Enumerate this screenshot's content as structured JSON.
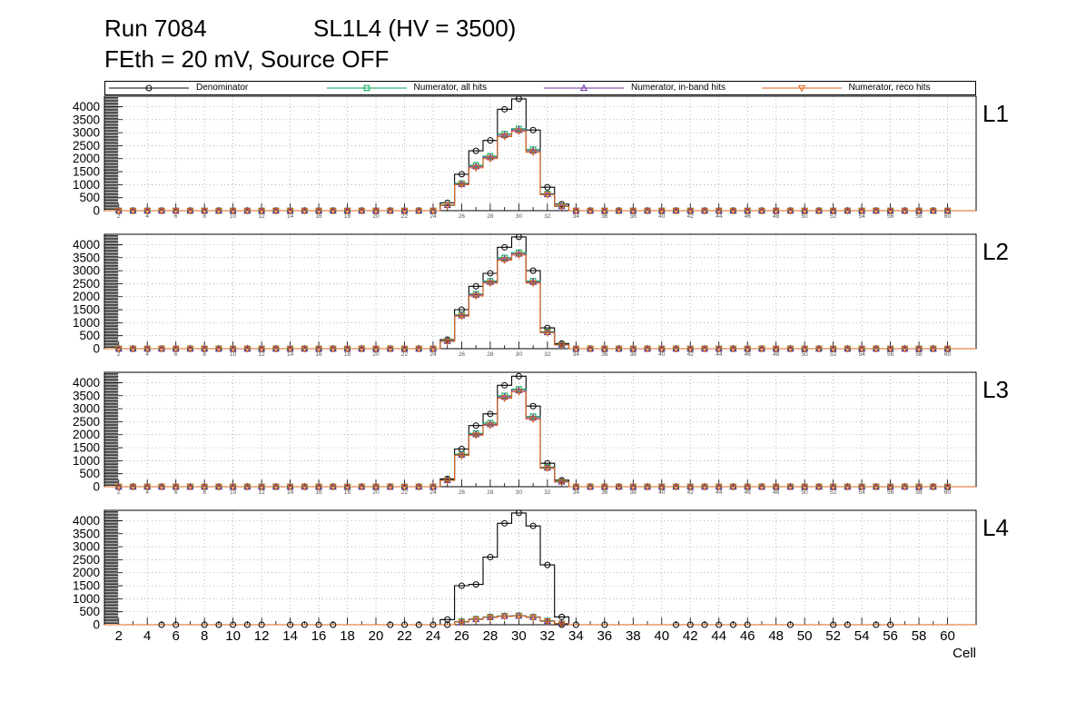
{
  "header": {
    "run": "Run 7084",
    "config": "SL1L4 (HV = 3500)",
    "subtitle": "FEth = 20 mV, Source OFF"
  },
  "legend": {
    "entries": [
      {
        "label": "Denominator",
        "color": "#000000",
        "marker": "circle"
      },
      {
        "label": "Numerator, all hits",
        "color": "#00a651",
        "marker": "square"
      },
      {
        "label": "Numerator, in-band hits",
        "color": "#7030a0",
        "marker": "triangle-up"
      },
      {
        "label": "Numerator, reco hits",
        "color": "#e0661a",
        "marker": "triangle-down"
      }
    ]
  },
  "axes": {
    "x_label": "Cell",
    "x_min": 1,
    "x_max": 62,
    "x_tick_start": 2,
    "x_tick_end": 60,
    "x_tick_step": 2,
    "y_min": 0,
    "y_max": 4400,
    "y_tick_step": 500,
    "y_tick_label_max": 4000,
    "grid": true
  },
  "chart_data": {
    "type": "line",
    "description": "Step histograms (counts vs cell) for layers L1-L4; all cells outside peak_cells have value 0.",
    "xlabel": "Cell",
    "ylabel": "",
    "ylim": [
      0,
      4400
    ],
    "peak_cells": [
      24,
      25,
      26,
      27,
      28,
      29,
      30,
      31,
      32,
      33,
      34
    ],
    "series_names": [
      "Denominator",
      "Numerator, all hits",
      "Numerator, in-band hits",
      "Numerator, reco hits"
    ],
    "panels": [
      {
        "label": "L1",
        "values": [
          [
            0,
            300,
            1400,
            2300,
            2700,
            3900,
            4300,
            3100,
            900,
            250,
            0
          ],
          [
            0,
            220,
            1050,
            1750,
            2100,
            2950,
            3150,
            2350,
            650,
            180,
            0
          ],
          [
            0,
            210,
            1020,
            1700,
            2050,
            2900,
            3100,
            2300,
            630,
            170,
            0
          ],
          [
            0,
            200,
            1000,
            1650,
            2000,
            2850,
            3050,
            2250,
            610,
            160,
            0
          ]
        ]
      },
      {
        "label": "L2",
        "values": [
          [
            0,
            350,
            1500,
            2400,
            2900,
            3900,
            4300,
            3000,
            800,
            200,
            0
          ],
          [
            0,
            300,
            1300,
            2100,
            2600,
            3500,
            3700,
            2600,
            650,
            160,
            0
          ],
          [
            0,
            290,
            1280,
            2070,
            2560,
            3450,
            3650,
            2560,
            630,
            150,
            0
          ],
          [
            0,
            280,
            1250,
            2030,
            2520,
            3400,
            3600,
            2520,
            610,
            140,
            0
          ]
        ]
      },
      {
        "label": "L3",
        "values": [
          [
            0,
            300,
            1450,
            2350,
            2800,
            3900,
            4250,
            3100,
            900,
            250,
            0
          ],
          [
            0,
            260,
            1250,
            2050,
            2450,
            3500,
            3750,
            2700,
            750,
            200,
            0
          ],
          [
            0,
            250,
            1220,
            2010,
            2400,
            3450,
            3700,
            2650,
            730,
            190,
            0
          ],
          [
            0,
            240,
            1200,
            1980,
            2360,
            3400,
            3650,
            2600,
            710,
            180,
            0
          ]
        ]
      },
      {
        "label": "L4",
        "values": [
          [
            0,
            200,
            1500,
            1550,
            2600,
            3900,
            4300,
            3800,
            2300,
            300,
            0
          ],
          [
            0,
            0,
            120,
            220,
            300,
            340,
            350,
            300,
            150,
            50,
            0
          ],
          [
            0,
            0,
            110,
            210,
            290,
            330,
            340,
            290,
            140,
            45,
            0
          ],
          [
            0,
            0,
            100,
            200,
            280,
            320,
            330,
            280,
            130,
            40,
            0
          ]
        ]
      }
    ],
    "l4_zero_marker_cells": [
      5,
      6,
      8,
      9,
      10,
      11,
      12,
      14,
      15,
      16,
      17,
      21,
      22,
      23,
      24,
      25,
      33,
      34,
      36,
      41,
      42,
      43,
      44,
      45,
      46,
      49,
      52,
      53,
      55,
      56
    ]
  }
}
